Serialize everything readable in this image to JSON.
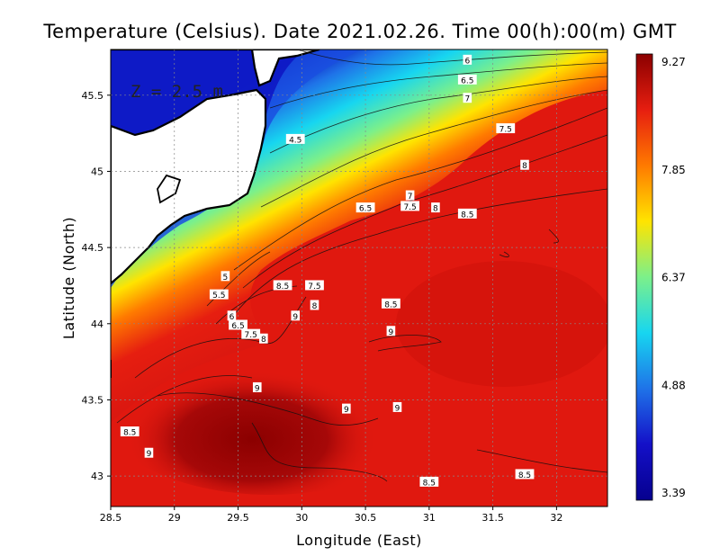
{
  "title": "Temperature (Celsius). Date 2021.02.26. Time 00(h):00(m)  GMT",
  "depth_label": "Z = 2.5 m",
  "x_axis": {
    "label": "Longitude (East)",
    "ticks": [
      28.5,
      29,
      29.5,
      30,
      30.5,
      31,
      31.5,
      32
    ],
    "range": [
      28.5,
      32.4
    ]
  },
  "y_axis": {
    "label": "Latitude (North)",
    "ticks": [
      43,
      43.5,
      44,
      44.5,
      45,
      45.5
    ],
    "range": [
      42.8,
      45.8
    ]
  },
  "colorbar": {
    "ticks": [
      "9.27",
      "7.85",
      "6.37",
      "4.88",
      "3.39"
    ],
    "min": 3.39,
    "max": 9.27,
    "colors": [
      "#8b0000",
      "#e61e10",
      "#ff7a00",
      "#ffe400",
      "#7cf08a",
      "#17d6f0",
      "#1f73e8",
      "#1410c8",
      "#06008e"
    ]
  },
  "contour_labels": [
    {
      "text": "6",
      "lon": 31.3,
      "lat": 45.73
    },
    {
      "text": "6.5",
      "lon": 31.3,
      "lat": 45.6
    },
    {
      "text": "7",
      "lon": 31.3,
      "lat": 45.48
    },
    {
      "text": "7.5",
      "lon": 31.6,
      "lat": 45.28
    },
    {
      "text": "8",
      "lon": 31.75,
      "lat": 45.04
    },
    {
      "text": "4.5",
      "lon": 29.95,
      "lat": 45.21
    },
    {
      "text": "7",
      "lon": 30.85,
      "lat": 44.84
    },
    {
      "text": "6.5",
      "lon": 30.5,
      "lat": 44.76
    },
    {
      "text": "7.5",
      "lon": 30.85,
      "lat": 44.77
    },
    {
      "text": "8",
      "lon": 31.05,
      "lat": 44.76
    },
    {
      "text": "8.5",
      "lon": 31.3,
      "lat": 44.72
    },
    {
      "text": "5",
      "lon": 29.4,
      "lat": 44.31
    },
    {
      "text": "5.5",
      "lon": 29.35,
      "lat": 44.19
    },
    {
      "text": "8.5",
      "lon": 29.85,
      "lat": 44.25
    },
    {
      "text": "7.5",
      "lon": 30.1,
      "lat": 44.25
    },
    {
      "text": "8",
      "lon": 30.1,
      "lat": 44.12
    },
    {
      "text": "8.5",
      "lon": 30.7,
      "lat": 44.13
    },
    {
      "text": "9",
      "lon": 29.95,
      "lat": 44.05
    },
    {
      "text": "6",
      "lon": 29.45,
      "lat": 44.05
    },
    {
      "text": "6.5",
      "lon": 29.5,
      "lat": 43.99
    },
    {
      "text": "7.5",
      "lon": 29.6,
      "lat": 43.93
    },
    {
      "text": "8",
      "lon": 29.7,
      "lat": 43.9
    },
    {
      "text": "9",
      "lon": 30.7,
      "lat": 43.95
    },
    {
      "text": "9",
      "lon": 29.65,
      "lat": 43.58
    },
    {
      "text": "9",
      "lon": 30.35,
      "lat": 43.44
    },
    {
      "text": "9",
      "lon": 30.75,
      "lat": 43.45
    },
    {
      "text": "8.5",
      "lon": 28.65,
      "lat": 43.29
    },
    {
      "text": "9",
      "lon": 28.8,
      "lat": 43.15
    },
    {
      "text": "8.5",
      "lon": 31,
      "lat": 42.96
    },
    {
      "text": "8.5",
      "lon": 31.75,
      "lat": 43.01
    }
  ]
}
